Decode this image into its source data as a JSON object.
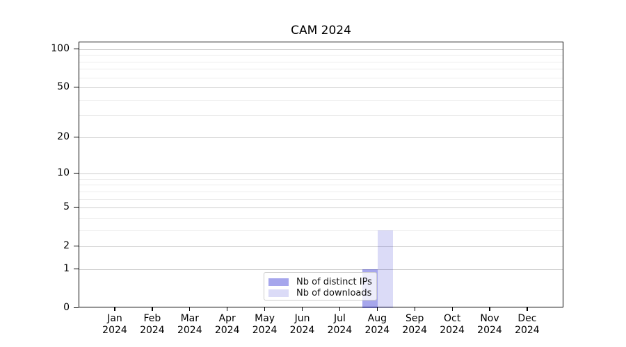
{
  "title": "CAM 2024",
  "chart_data": {
    "type": "bar",
    "title": "CAM 2024",
    "categories": [
      "Jan",
      "Feb",
      "Mar",
      "Apr",
      "May",
      "Jun",
      "Jul",
      "Aug",
      "Sep",
      "Oct",
      "Nov",
      "Dec"
    ],
    "year_label": "2024",
    "series": [
      {
        "name": "Nb of distinct IPs",
        "color": "rgba(0,0,200,0.35)",
        "values": [
          0,
          0,
          0,
          0,
          0,
          0,
          0,
          1,
          0,
          0,
          0,
          0
        ]
      },
      {
        "name": "Nb of downloads",
        "color": "rgba(0,0,200,0.14)",
        "values": [
          0,
          0,
          0,
          0,
          0,
          0,
          0,
          3,
          0,
          0,
          0,
          0
        ]
      }
    ],
    "yscale": "log1p",
    "ylim": [
      0,
      113
    ],
    "ytick_values": [
      0,
      1,
      2,
      5,
      10,
      20,
      50,
      100
    ],
    "ytick_labels": [
      "0",
      "1",
      "2",
      "5",
      "10",
      "20",
      "50",
      "100"
    ],
    "minor_gridline_values": [
      3,
      4,
      6,
      7,
      8,
      9,
      30,
      40,
      60,
      70,
      80,
      90
    ],
    "xlabel": "",
    "ylabel": "",
    "grid": true,
    "legend_position": "lower center"
  },
  "colors": {
    "background": "#ffffff",
    "axis": "#000000",
    "major_grid": "#cccccc",
    "minor_grid": "#ececec"
  }
}
